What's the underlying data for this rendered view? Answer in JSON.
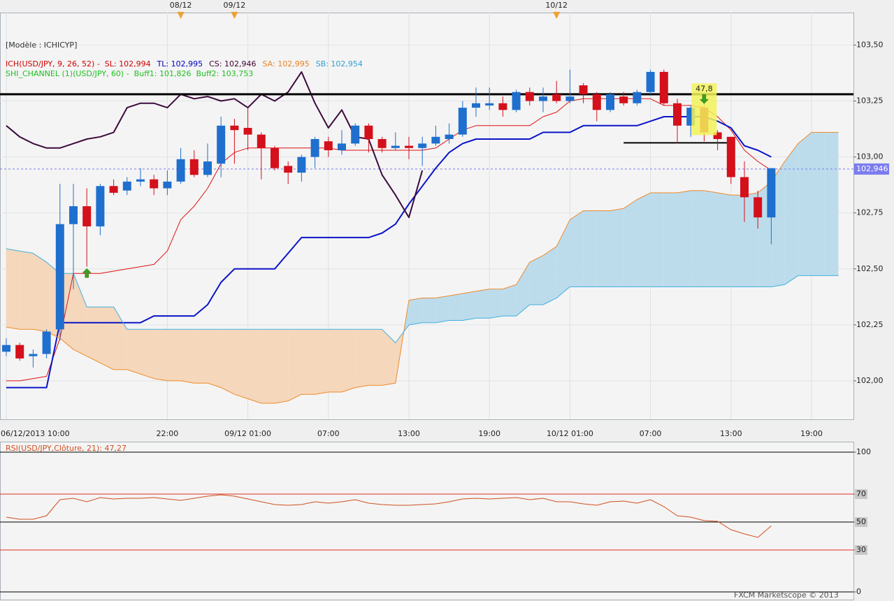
{
  "header": {
    "model": "[Modèle : ICHICYP]"
  },
  "footer": "FXCM Marketscope © 2013",
  "chart_data": [
    {
      "type": "candlestick",
      "legend": [
        [
          {
            "text": "ICH(USD/JPY, 9, 26, 52) -  SL: 102,994",
            "color": "#d00000"
          },
          {
            "text": "TL: 102,995",
            "color": "#0000c0"
          },
          {
            "text": "CS: 102,946",
            "color": "#400030"
          },
          {
            "text": "SA: 102,995",
            "color": "#f08020"
          },
          {
            "text": "SB: 102,954",
            "color": "#30a0d0"
          }
        ],
        [
          {
            "text": "SHI_CHANNEL (1)(USD/JPY, 60) -  Buff1: 101,826  Buff2: 103,753",
            "color": "#20c020"
          }
        ]
      ],
      "categories": [
        "06/12/2013 10:00",
        null,
        null,
        null,
        null,
        null,
        null,
        null,
        null,
        null,
        null,
        null,
        "22:00",
        null,
        null,
        null,
        null,
        null,
        "09/12 01:00",
        null,
        null,
        null,
        null,
        null,
        "07:00",
        null,
        null,
        null,
        null,
        null,
        "13:00",
        null,
        null,
        null,
        null,
        null,
        "19:00",
        null,
        null,
        null,
        null,
        null,
        "10/12 01:00",
        null,
        null,
        null,
        null,
        null,
        "07:00",
        null,
        null,
        null,
        null,
        null,
        "13:00",
        null,
        null,
        null,
        null,
        null,
        "19:00",
        null,
        null
      ],
      "date_markers": [
        null,
        null,
        null,
        null,
        null,
        null,
        null,
        null,
        null,
        null,
        null,
        null,
        null,
        "08/12",
        null,
        null,
        null,
        "09/12",
        null,
        null,
        null,
        null,
        null,
        null,
        null,
        null,
        null,
        null,
        null,
        null,
        null,
        null,
        null,
        null,
        null,
        null,
        null,
        null,
        null,
        null,
        null,
        "10/12",
        null,
        null,
        null,
        null,
        null,
        null,
        null,
        null,
        null,
        null,
        null,
        null,
        null,
        null,
        null,
        null,
        null,
        null,
        null,
        null,
        null
      ],
      "marker_color": "#f0a030",
      "open": [
        102.13,
        102.16,
        102.11,
        102.12,
        102.23,
        102.7,
        102.78,
        102.69,
        102.87,
        102.85,
        102.89,
        102.9,
        102.86,
        102.89,
        102.99,
        102.92,
        102.97,
        103.14,
        103.13,
        103.1,
        103.04,
        102.96,
        102.93,
        103.0,
        103.07,
        103.03,
        103.06,
        103.14,
        103.08,
        103.04,
        103.05,
        103.04,
        103.06,
        103.08,
        103.1,
        103.22,
        103.23,
        103.24,
        103.21,
        103.29,
        103.25,
        103.28,
        103.25,
        103.32,
        103.28,
        103.21,
        103.27,
        103.24,
        103.29,
        103.38,
        103.24,
        103.14,
        103.22,
        103.11,
        103.09,
        102.91,
        102.82,
        102.73,
        null,
        null,
        null,
        null,
        null
      ],
      "high": [
        102.19,
        102.17,
        102.14,
        102.23,
        102.88,
        102.88,
        102.86,
        102.88,
        102.9,
        102.91,
        102.95,
        102.92,
        102.94,
        103.04,
        103.03,
        103.06,
        103.18,
        103.17,
        103.22,
        103.11,
        103.05,
        102.98,
        103.01,
        103.09,
        103.09,
        103.12,
        103.15,
        103.15,
        103.09,
        103.11,
        103.09,
        103.09,
        103.14,
        103.15,
        103.25,
        103.31,
        103.31,
        103.27,
        103.3,
        103.31,
        103.31,
        103.34,
        103.39,
        103.33,
        103.29,
        103.29,
        103.29,
        103.3,
        103.39,
        103.39,
        103.26,
        103.23,
        103.26,
        103.12,
        103.09,
        102.98,
        102.85,
        102.95,
        null,
        null,
        null,
        null,
        null
      ],
      "low": [
        102.11,
        102.09,
        102.06,
        102.1,
        102.18,
        102.41,
        102.51,
        102.65,
        102.83,
        102.83,
        102.87,
        102.83,
        102.83,
        102.88,
        102.91,
        102.91,
        102.91,
        102.97,
        103.03,
        102.9,
        102.94,
        102.88,
        102.89,
        102.95,
        103.0,
        103.01,
        103.05,
        103.02,
        103.02,
        103.03,
        102.99,
        102.96,
        103.05,
        103.06,
        103.09,
        103.18,
        103.21,
        103.18,
        103.2,
        103.23,
        103.2,
        103.24,
        103.24,
        103.24,
        103.16,
        103.2,
        103.23,
        103.23,
        103.28,
        103.23,
        103.06,
        103.09,
        103.07,
        103.03,
        102.88,
        102.71,
        102.68,
        102.61,
        null,
        null,
        null,
        null,
        null
      ],
      "close": [
        102.16,
        102.1,
        102.12,
        102.22,
        102.7,
        102.78,
        102.69,
        102.87,
        102.84,
        102.89,
        102.9,
        102.86,
        102.89,
        102.99,
        102.92,
        102.98,
        103.14,
        103.12,
        103.1,
        103.04,
        102.95,
        102.93,
        103.0,
        103.08,
        103.03,
        103.06,
        103.14,
        103.08,
        103.04,
        103.05,
        103.04,
        103.06,
        103.09,
        103.1,
        103.22,
        103.24,
        103.24,
        103.21,
        103.29,
        103.25,
        103.27,
        103.25,
        103.27,
        103.28,
        103.21,
        103.28,
        103.24,
        103.29,
        103.38,
        103.24,
        103.14,
        103.22,
        103.11,
        103.08,
        102.91,
        102.82,
        102.73,
        102.95,
        null,
        null,
        null,
        null,
        null
      ],
      "up_color": "#1f6fce",
      "down_color": "#d4101b",
      "cloud_colors": {
        "bullish": "#bcdcec",
        "bearish": "#f5d7bb"
      },
      "cloud": [
        3,
        4
      ],
      "series": [
        {
          "color": "#e01010",
          "width": 1,
          "values": [
            102.0,
            102.0,
            102.01,
            102.02,
            102.19,
            102.48,
            102.48,
            102.48,
            102.49,
            102.5,
            102.51,
            102.52,
            102.58,
            102.72,
            102.78,
            102.86,
            102.97,
            103.02,
            103.04,
            103.04,
            103.04,
            103.04,
            103.04,
            103.04,
            103.04,
            103.03,
            103.03,
            103.03,
            103.03,
            103.03,
            103.03,
            103.03,
            103.04,
            103.08,
            103.12,
            103.14,
            103.14,
            103.14,
            103.14,
            103.14,
            103.18,
            103.2,
            103.25,
            103.26,
            103.26,
            103.26,
            103.26,
            103.26,
            103.26,
            103.23,
            103.23,
            103.23,
            103.22,
            103.18,
            103.12,
            103.03,
            102.98,
            102.94,
            null,
            null,
            null,
            null,
            null
          ]
        },
        {
          "color": "#0a14c8",
          "width": 2,
          "values": [
            101.97,
            101.97,
            101.97,
            101.97,
            102.26,
            102.26,
            102.26,
            102.26,
            102.26,
            102.26,
            102.26,
            102.29,
            102.29,
            102.29,
            102.29,
            102.34,
            102.44,
            102.5,
            102.5,
            102.5,
            102.5,
            102.57,
            102.64,
            102.64,
            102.64,
            102.64,
            102.64,
            102.64,
            102.66,
            102.7,
            102.79,
            102.87,
            102.95,
            103.02,
            103.06,
            103.08,
            103.08,
            103.08,
            103.08,
            103.08,
            103.11,
            103.11,
            103.11,
            103.14,
            103.14,
            103.14,
            103.14,
            103.14,
            103.16,
            103.18,
            103.18,
            103.18,
            103.18,
            103.16,
            103.13,
            103.05,
            103.03,
            103.0,
            null,
            null,
            null,
            null,
            null
          ]
        },
        {
          "color": "#3c0a3c",
          "width": 2,
          "values": [
            103.14,
            103.09,
            103.06,
            103.04,
            103.04,
            103.06,
            103.08,
            103.09,
            103.11,
            103.22,
            103.24,
            103.24,
            103.22,
            103.28,
            103.26,
            103.27,
            103.25,
            103.26,
            103.22,
            103.28,
            103.25,
            103.29,
            103.38,
            103.24,
            103.13,
            103.21,
            103.09,
            103.08,
            102.92,
            102.83,
            102.73,
            102.94,
            null,
            null,
            null,
            null,
            null,
            null,
            null,
            null,
            null,
            null,
            null,
            null,
            null,
            null,
            null,
            null,
            null,
            null,
            null,
            null,
            null,
            null,
            null,
            null,
            null,
            null,
            null,
            null,
            null,
            null,
            null
          ]
        },
        {
          "color": "#f08a2a",
          "width": 1,
          "values": [
            102.24,
            102.23,
            102.23,
            102.22,
            102.19,
            102.14,
            102.11,
            102.08,
            102.05,
            102.05,
            102.03,
            102.01,
            102.0,
            102.0,
            101.99,
            101.99,
            101.97,
            101.94,
            101.92,
            101.9,
            101.9,
            101.91,
            101.94,
            101.94,
            101.95,
            101.95,
            101.97,
            101.98,
            101.98,
            101.99,
            102.36,
            102.37,
            102.37,
            102.38,
            102.39,
            102.4,
            102.41,
            102.41,
            102.43,
            102.53,
            102.56,
            102.6,
            102.72,
            102.76,
            102.76,
            102.76,
            102.77,
            102.81,
            102.84,
            102.84,
            102.84,
            102.85,
            102.85,
            102.84,
            102.83,
            102.83,
            102.84,
            102.89,
            102.98,
            103.06,
            103.11,
            103.11,
            103.11
          ]
        },
        {
          "color": "#40b0e0",
          "width": 1,
          "values": [
            102.59,
            102.58,
            102.57,
            102.53,
            102.48,
            102.48,
            102.33,
            102.33,
            102.33,
            102.23,
            102.23,
            102.23,
            102.23,
            102.23,
            102.23,
            102.23,
            102.23,
            102.23,
            102.23,
            102.23,
            102.23,
            102.23,
            102.23,
            102.23,
            102.23,
            102.23,
            102.23,
            102.23,
            102.23,
            102.17,
            102.25,
            102.26,
            102.26,
            102.27,
            102.27,
            102.28,
            102.28,
            102.29,
            102.29,
            102.34,
            102.34,
            102.37,
            102.42,
            102.42,
            102.42,
            102.42,
            102.42,
            102.42,
            102.42,
            102.42,
            102.42,
            102.42,
            102.42,
            102.42,
            102.42,
            102.42,
            102.42,
            102.42,
            102.43,
            102.47,
            102.47,
            102.47,
            102.47
          ]
        }
      ],
      "ylim": [
        101.85,
        103.645
      ],
      "yticks": [
        {
          "value": 102,
          "label": "102,00"
        },
        {
          "value": 102.25,
          "label": "102,25"
        },
        {
          "value": 102.5,
          "label": "102,50"
        },
        {
          "value": 102.75,
          "label": "102,75"
        },
        {
          "value": 103,
          "label": "103,00"
        },
        {
          "value": 103.25,
          "label": "103,25"
        },
        {
          "value": 103.5,
          "label": "103,50"
        }
      ],
      "grid": true,
      "last_price": {
        "value": 102.946,
        "label": "102,946",
        "color": "#7b7bf0"
      },
      "levels": [
        {
          "value": 103.28,
          "width": 3,
          "color": "#000000"
        },
        {
          "value": 103.063,
          "start": 46,
          "end": 54,
          "width": 2,
          "color": "#000000"
        }
      ],
      "signals": [
        {
          "direction": "up",
          "index": 6,
          "value": 102.48,
          "color": "#3ca01e"
        },
        {
          "direction": "down",
          "index": 52,
          "value": 103.26,
          "color": "#3ca01e"
        }
      ],
      "annotation": {
        "text": "47,8",
        "index": 52,
        "color": "#f2f25a"
      }
    },
    {
      "type": "line",
      "title": "RSI(USD/JPY,Clôture, 21): 47,27",
      "series": [
        {
          "color": "#d05020",
          "width": 1,
          "values": [
            53.5,
            52,
            52,
            54.5,
            66,
            67,
            64.5,
            67.5,
            66.5,
            67,
            67,
            67.5,
            66.5,
            65.5,
            67,
            68.5,
            69.5,
            68.5,
            66.5,
            64.5,
            62.5,
            62,
            62.5,
            64.5,
            63.5,
            64.5,
            66,
            63.5,
            62.5,
            62,
            62,
            62.5,
            63,
            64.5,
            66.5,
            67,
            66.5,
            67,
            67.5,
            66,
            67,
            64.5,
            64.5,
            63,
            62,
            64.5,
            65,
            63.5,
            66,
            61,
            54.5,
            53.5,
            51,
            50.5,
            44.5,
            41.5,
            39,
            47.27,
            null,
            null,
            null,
            null,
            null
          ]
        }
      ],
      "ylim": [
        0,
        100
      ],
      "yticks": [
        100,
        70,
        50,
        30,
        0
      ],
      "tick_colors": [
        "#000000",
        "#e03020",
        "#000000",
        "#e03020",
        "#000000"
      ]
    }
  ]
}
